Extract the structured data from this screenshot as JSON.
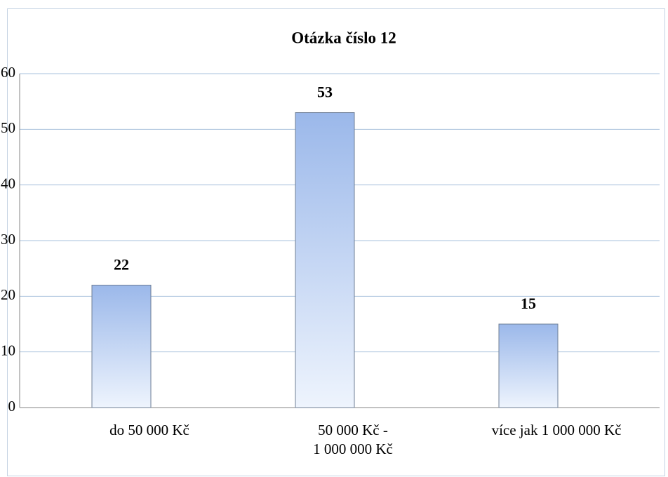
{
  "chart_data": {
    "type": "bar",
    "title": "Otázka číslo 12",
    "categories": [
      "do 50 000 Kč",
      "50 000 Kč -\n1 000 000 Kč",
      "více jak 1 000 000 Kč"
    ],
    "values": [
      22,
      53,
      15
    ],
    "color": "#9bb8ea",
    "ylim": [
      0,
      60
    ],
    "yticks": [
      0,
      10,
      20,
      30,
      40,
      50,
      60
    ],
    "grid": true
  }
}
